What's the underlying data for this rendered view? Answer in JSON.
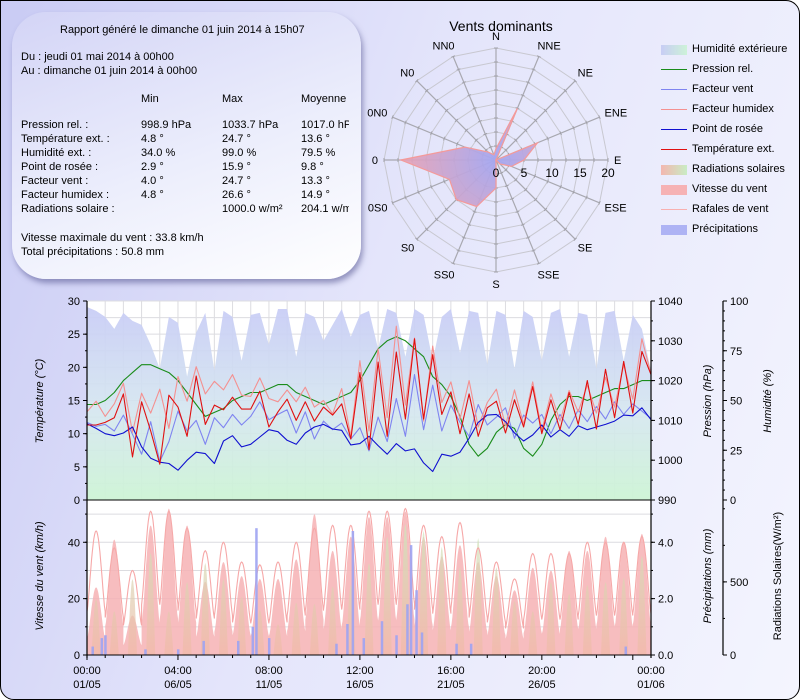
{
  "report": {
    "title": "Rapport généré le dimanche 01 juin 2014 à 15h07",
    "from": "Du : jeudi 01 mai 2014 à 00h00",
    "to": "Au : dimanche 01 juin 2014 à 00h00",
    "columns": [
      "Min",
      "Max",
      "Moyenne"
    ],
    "rows": [
      {
        "label": "Pression rel. :",
        "min": "998.9 hPa",
        "max": "1033.7 hPa",
        "avg": "1017.0 hPa"
      },
      {
        "label": "Température ext. :",
        "min": "4.8 °",
        "max": "24.7 °",
        "avg": "13.6 °"
      },
      {
        "label": "Humidité ext. :",
        "min": "34.0 %",
        "max": "99.0 %",
        "avg": "79.5 %"
      },
      {
        "label": "Point de rosée :",
        "min": "2.9 °",
        "max": "15.9 °",
        "avg": "9.8 °"
      },
      {
        "label": "Facteur vent :",
        "min": "4.0 °",
        "max": "24.7 °",
        "avg": "13.3 °"
      },
      {
        "label": "Facteur humidex :",
        "min": "4.8 °",
        "max": "26.6 °",
        "avg": "14.9 °"
      },
      {
        "label": "Radiations solaire :",
        "min": "",
        "max": "1000.0 w/m²",
        "avg": "204.1 w/m²"
      }
    ],
    "max_wind": "Vitesse maximale du vent : 33.8 km/h",
    "total_rain": "Total précipitations : 50.8 mm"
  },
  "legend": [
    {
      "label": "Humidité extérieure",
      "kind": "area",
      "color": "#c8cdf5",
      "color2": "#cdf2d8"
    },
    {
      "label": "Pression rel.",
      "kind": "line",
      "color": "#1a8c1a"
    },
    {
      "label": "Facteur vent",
      "kind": "line",
      "color": "#7f84f0"
    },
    {
      "label": "Facteur humidex",
      "kind": "line",
      "color": "#f49090"
    },
    {
      "label": "Point de rosée",
      "kind": "line",
      "color": "#1010d0"
    },
    {
      "label": "Température ext.",
      "kind": "line",
      "color": "#e01010"
    },
    {
      "label": "Radiations solaires",
      "kind": "area",
      "color": "#f3b7b0",
      "color2": "#c9ecc4"
    },
    {
      "label": "Vitesse du vent",
      "kind": "area",
      "color": "#f6b2b4",
      "color2": "#f6b2b4"
    },
    {
      "label": "Rafales de vent",
      "kind": "line",
      "color": "#f8b0b0"
    },
    {
      "label": "Précipitations",
      "kind": "area",
      "color": "#aeb3f4",
      "color2": "#aeb3f4"
    }
  ],
  "chart_data": [
    {
      "type": "radar",
      "title": "Vents dominants",
      "directions": [
        "N",
        "NNE",
        "NE",
        "ENE",
        "E",
        "ESE",
        "SE",
        "SSE",
        "S",
        "SS0",
        "S0",
        "0S0",
        "0",
        "0N0",
        "N0",
        "NN0"
      ],
      "values": [
        2,
        10,
        0,
        8,
        5,
        3,
        1,
        0,
        5,
        9,
        10,
        9,
        17,
        6,
        2,
        1
      ],
      "rmax": 20,
      "rticks": [
        0,
        5,
        10,
        15,
        20
      ],
      "fill_color": "#f4a0a8",
      "center_color": "#a4a8f2"
    },
    {
      "type": "line",
      "title": "",
      "xlabel": "",
      "x_range_days": [
        0,
        31
      ],
      "x_ticks": [
        {
          "day": 0,
          "time": "00:00",
          "date": "01/05"
        },
        {
          "day": 5,
          "time": "04:00",
          "date": "06/05"
        },
        {
          "day": 10,
          "time": "08:00",
          "date": "11/05"
        },
        {
          "day": 15,
          "time": "12:00",
          "date": "16/05"
        },
        {
          "day": 20,
          "time": "16:00",
          "date": "21/05"
        },
        {
          "day": 25,
          "time": "20:00",
          "date": "26/05"
        },
        {
          "day": 31,
          "time": "00:00",
          "date": "01/06"
        }
      ],
      "axes": {
        "temperature": {
          "label": "Température (°C)",
          "range": [
            0,
            30
          ],
          "ticks": [
            0,
            5,
            10,
            15,
            20,
            25,
            30
          ]
        },
        "pressure": {
          "label": "Pression (hPa)",
          "range": [
            990,
            1040
          ],
          "ticks": [
            990,
            1000,
            1010,
            1020,
            1030,
            1040
          ]
        },
        "humidity": {
          "label": "Humidité (%)",
          "range": [
            0,
            100
          ],
          "ticks": [
            0,
            25,
            50,
            75,
            100
          ]
        }
      },
      "series": [
        {
          "name": "Humidité extérieure",
          "axis": "humidity",
          "style": "area",
          "values": [
            97,
            95,
            92,
            86,
            94,
            90,
            88,
            78,
            66,
            92,
            89,
            62,
            84,
            94,
            65,
            95,
            92,
            70,
            93,
            94,
            78,
            96,
            96,
            72,
            94,
            92,
            80,
            88,
            96,
            82,
            93,
            95,
            76,
            96,
            94,
            72,
            96,
            93,
            70,
            92,
            96,
            74,
            95,
            94,
            68,
            95,
            93,
            66,
            95,
            92,
            70,
            94,
            96,
            72,
            94,
            93,
            66,
            94,
            95,
            70,
            93,
            86,
            65
          ]
        },
        {
          "name": "Pression rel.",
          "axis": "pressure",
          "style": "line",
          "values": [
            1014,
            1014,
            1015,
            1017,
            1020,
            1022,
            1024,
            1024,
            1023,
            1022,
            1020,
            1017,
            1014,
            1011,
            1012,
            1013,
            1015,
            1016,
            1017,
            1017,
            1018,
            1019,
            1019,
            1017,
            1016,
            1015,
            1014,
            1015,
            1016,
            1017,
            1020,
            1024,
            1028,
            1030,
            1031,
            1030,
            1028,
            1026,
            1021,
            1019,
            1016,
            1011,
            1004,
            1001,
            1003,
            1007,
            1009,
            1008,
            1003,
            1001,
            1004,
            1010,
            1014,
            1016,
            1016,
            1015,
            1016,
            1017,
            1018,
            1018,
            1019,
            1020,
            1020
          ]
        },
        {
          "name": "Facteur vent",
          "axis": "temperature",
          "style": "line",
          "values": [
            11.7,
            11.1,
            11.4,
            10.4,
            12.8,
            9.9,
            6.9,
            11.8,
            5.8,
            8.8,
            13.4,
            10.4,
            12.0,
            8.4,
            12.4,
            10.9,
            12.9,
            11.3,
            12.6,
            14.8,
            12.1,
            12.9,
            13.6,
            10.1,
            13.3,
            9.2,
            11.9,
            10.6,
            11.6,
            9.2,
            10.9,
            7.4,
            12.5,
            8.8,
            15.3,
            9.6,
            18.9,
            10.6,
            17.3,
            10.4,
            14.3,
            11.7,
            9.6,
            14.4,
            11.3,
            12.5,
            13.9,
            9.3,
            12.8,
            11.6,
            12.9,
            10.0,
            12.9,
            10.8,
            13.6,
            11.8,
            14.1,
            12.2,
            14.8,
            12.9,
            14.5,
            13.4,
            12.3
          ]
        },
        {
          "name": "Facteur humidex",
          "axis": "temperature",
          "style": "line",
          "values": [
            13.3,
            14.9,
            12.6,
            14.5,
            17.6,
            10.2,
            16.1,
            13.1,
            16.7,
            10.8,
            18.6,
            14.9,
            20.1,
            16.0,
            17.9,
            16.6,
            18.9,
            15.8,
            15.6,
            18.4,
            15.3,
            14.8,
            16.6,
            14.8,
            17.0,
            14.0,
            15.0,
            13.0,
            16.8,
            9.6,
            21.0,
            10.4,
            22.8,
            12.4,
            26.2,
            14.3,
            24.4,
            11.9,
            23.2,
            14.7,
            17.8,
            12.2,
            18.0,
            11.0,
            14.7,
            16.7,
            11.2,
            16.6,
            11.4,
            17.8,
            10.5,
            16.0,
            11.9,
            16.5,
            13.3,
            17.3,
            13.1,
            18.5,
            14.0,
            20.4,
            15.2,
            24.3,
            19.0
          ]
        },
        {
          "name": "Point de rosée",
          "axis": "temperature",
          "style": "line",
          "values": [
            11.5,
            10.8,
            10.0,
            9.7,
            10.1,
            11.0,
            8.0,
            6.3,
            5.7,
            5.5,
            4.5,
            6.0,
            7.2,
            7.0,
            5.5,
            8.9,
            9.7,
            8.0,
            8.4,
            9.5,
            10.6,
            10.3,
            9.0,
            8.4,
            10.1,
            11.0,
            11.4,
            10.7,
            10.5,
            8.3,
            8.5,
            9.6,
            8.2,
            6.9,
            8.5,
            7.4,
            7.7,
            5.6,
            4.3,
            6.9,
            6.6,
            7.2,
            9.3,
            11.7,
            12.8,
            12.9,
            11.8,
            10.1,
            8.9,
            9.8,
            11.3,
            9.5,
            10.6,
            9.6,
            11.2,
            10.6,
            11.0,
            11.4,
            11.9,
            12.8,
            12.7,
            13.9,
            12.1
          ]
        },
        {
          "name": "Température ext.",
          "axis": "temperature",
          "style": "line",
          "values": [
            11.3,
            11.3,
            11.7,
            12.4,
            16.0,
            6.5,
            14.8,
            10.4,
            5.4,
            15.8,
            14.0,
            9.6,
            18.7,
            11.4,
            14.3,
            13.6,
            15.5,
            13.7,
            13.7,
            16.4,
            11.0,
            13.3,
            15.2,
            12.0,
            14.8,
            11.9,
            14.0,
            12.8,
            14.5,
            9.2,
            19.2,
            7.6,
            20.8,
            9.6,
            22.3,
            12.2,
            24.3,
            12.2,
            21.9,
            12.9,
            16.3,
            10.0,
            16.0,
            9.6,
            13.9,
            14.9,
            10.1,
            15.1,
            11.0,
            17.1,
            10.0,
            15.1,
            10.6,
            16.2,
            11.4,
            18.0,
            10.7,
            19.7,
            12.4,
            20.9,
            13.1,
            22.4,
            18.9
          ]
        }
      ]
    },
    {
      "type": "area",
      "title": "",
      "x_range_days": [
        0,
        31
      ],
      "axes": {
        "wind": {
          "label": "Vitesse du vent (km/h)",
          "range": [
            0,
            55
          ],
          "ticks": [
            0,
            20,
            40
          ]
        },
        "precipitation": {
          "label": "Précipitations (mm)",
          "range": [
            0,
            5.5
          ],
          "ticks": [
            "0.0",
            "2.0",
            "4.0"
          ]
        },
        "radiation": {
          "label": "Radiations Solaires(W/m²)",
          "range": [
            0,
            1060
          ],
          "ticks": [
            0,
            500
          ]
        }
      },
      "series": [
        {
          "name": "Radiations solaires",
          "axis": "radiation",
          "style": "area",
          "daily_peaks": [
            380,
            300,
            520,
            700,
            300,
            500,
            630,
            520,
            400,
            310,
            210,
            360,
            350,
            470,
            480,
            630,
            810,
            900,
            850,
            740,
            600,
            800,
            600,
            370,
            300,
            500,
            420,
            480,
            500,
            530,
            680
          ]
        },
        {
          "name": "Vitesse du vent",
          "axis": "wind",
          "style": "area",
          "daily_peaks": [
            24,
            41,
            14,
            46,
            52,
            46,
            26,
            33,
            28,
            27,
            27,
            34,
            50,
            37,
            42,
            49,
            49,
            51,
            42,
            35,
            39,
            33,
            28,
            23,
            31,
            30,
            37,
            37,
            42,
            40,
            43
          ]
        },
        {
          "name": "Rafales de vent",
          "axis": "wind",
          "style": "line",
          "daily_peaks": [
            44,
            38,
            30,
            51,
            51,
            45,
            37,
            40,
            33,
            32,
            33,
            40,
            45,
            46,
            46,
            51,
            51,
            52,
            46,
            42,
            47,
            38,
            33,
            27,
            36,
            36,
            36,
            40,
            40,
            40,
            42
          ]
        },
        {
          "name": "Précipitations",
          "axis": "precipitation",
          "style": "bars",
          "events": [
            [
              0.3,
              0.3
            ],
            [
              0.8,
              0.6
            ],
            [
              1.0,
              0.7
            ],
            [
              3.2,
              0.2
            ],
            [
              5.0,
              0.2
            ],
            [
              6.4,
              0.5
            ],
            [
              8.3,
              0.5
            ],
            [
              9.1,
              1.0
            ],
            [
              9.3,
              4.5
            ],
            [
              10.0,
              0.6
            ],
            [
              13.7,
              0.4
            ],
            [
              14.3,
              1.1
            ],
            [
              14.6,
              4.4
            ],
            [
              15.2,
              0.6
            ],
            [
              16.2,
              1.2
            ],
            [
              17.0,
              0.7
            ],
            [
              17.6,
              1.8
            ],
            [
              17.8,
              3.9
            ],
            [
              18.1,
              2.3
            ],
            [
              18.4,
              0.8
            ],
            [
              20.3,
              0.4
            ],
            [
              21.1,
              0.4
            ],
            [
              29.6,
              0.3
            ]
          ]
        }
      ]
    }
  ]
}
